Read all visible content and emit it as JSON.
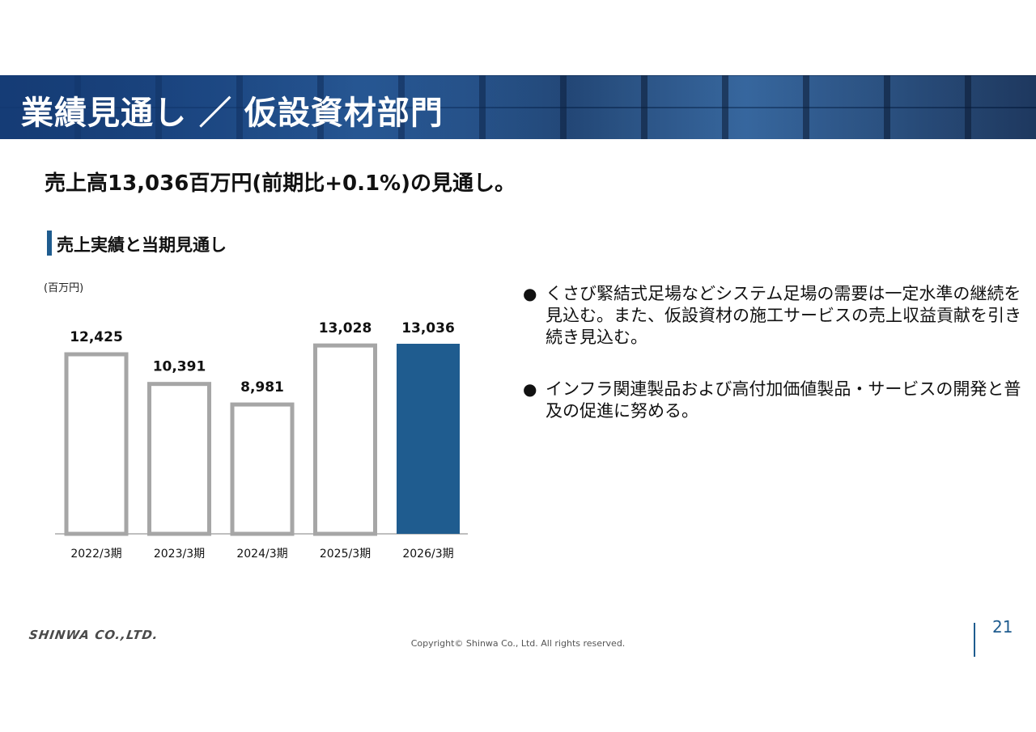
{
  "header": {
    "title": "業績見通し ／ 仮設資材部門"
  },
  "headline": "売上高13,036百万円(前期比+0.1%)の見通し。",
  "section": {
    "title": "売上実績と当期見通し"
  },
  "chart_data": {
    "type": "bar",
    "unit_label": "(百万円)",
    "categories": [
      "2022/3期",
      "2023/3期",
      "2024/3期",
      "2025/3期",
      "2026/3期"
    ],
    "values": [
      12425,
      10391,
      8981,
      13028,
      13036
    ],
    "value_labels": [
      "12,425",
      "10,391",
      "8,981",
      "13,028",
      "13,036"
    ],
    "highlight_index": 4,
    "colors": {
      "outline": "#a6a6a6",
      "highlight": "#1f5c8f",
      "baseline": "#bfbfbf"
    },
    "ylim": [
      0,
      13036
    ]
  },
  "bullets": [
    "くさび緊結式足場などシステム足場の需要は一定水準の継続を見込む。また、仮設資材の施工サービスの売上収益貢献を引き続き見込む。",
    "インフラ関連製品および高付加価値製品・サービスの開発と普及の促進に努める。"
  ],
  "bullet_symbol": "●",
  "footer": {
    "logo": "SHINWA CO.,LTD.",
    "copyright": "Copyright© Shinwa Co., Ltd. All rights reserved.",
    "page_number": "21"
  }
}
